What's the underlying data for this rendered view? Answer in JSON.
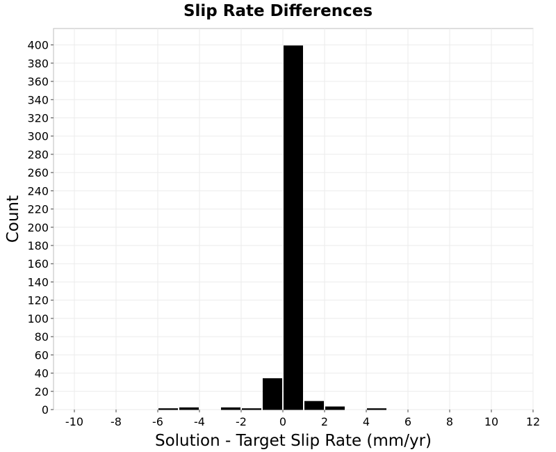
{
  "chart_data": {
    "type": "bar",
    "title": "Slip Rate Differences",
    "xlabel": "Solution - Target Slip Rate (mm/yr)",
    "ylabel": "Count",
    "xlim": [
      -11,
      12
    ],
    "ylim": [
      0,
      418
    ],
    "x_ticks": [
      -10,
      -8,
      -6,
      -4,
      -2,
      0,
      2,
      4,
      6,
      8,
      10,
      12
    ],
    "y_ticks": [
      0,
      20,
      40,
      60,
      80,
      100,
      120,
      140,
      160,
      180,
      200,
      220,
      240,
      260,
      280,
      300,
      320,
      340,
      360,
      380,
      400
    ],
    "bin_width": 1,
    "bars": [
      {
        "x": -5.5,
        "value": 1
      },
      {
        "x": -4.5,
        "value": 2
      },
      {
        "x": -2.5,
        "value": 2
      },
      {
        "x": -1.5,
        "value": 1
      },
      {
        "x": -0.5,
        "value": 34
      },
      {
        "x": 0.5,
        "value": 399
      },
      {
        "x": 1.5,
        "value": 9
      },
      {
        "x": 2.5,
        "value": 3
      },
      {
        "x": 4.5,
        "value": 1
      }
    ],
    "bar_color": "#000000",
    "grid": true,
    "legend": false
  }
}
